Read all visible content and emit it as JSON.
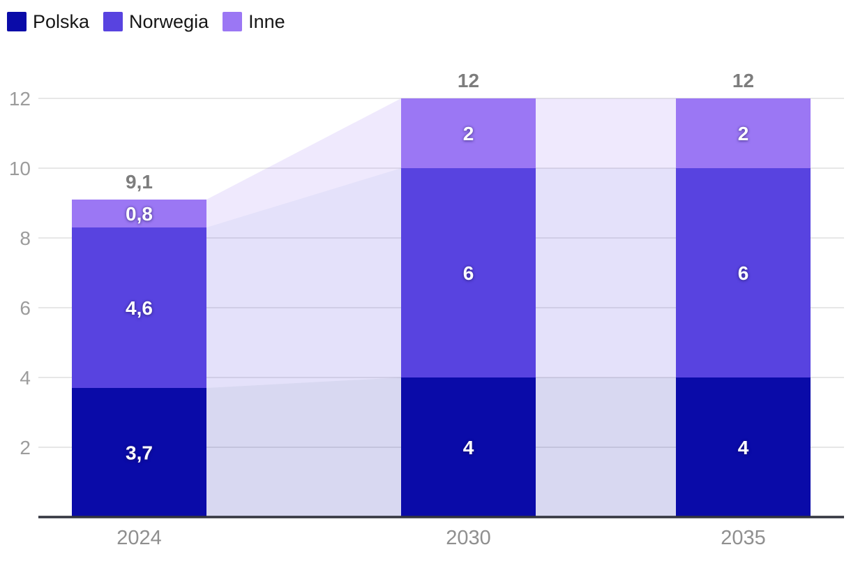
{
  "chart_data": {
    "type": "bar",
    "variant": "stacked-columns-with-connector-bands",
    "title": "",
    "categories": [
      "2024",
      "2030",
      "2035"
    ],
    "series": [
      {
        "name": "Polska",
        "color": "#0a0ba8",
        "values": [
          3.7,
          4,
          4
        ],
        "value_labels": [
          "3,7",
          "4",
          "4"
        ]
      },
      {
        "name": "Norwegia",
        "color": "#5843e0",
        "values": [
          4.6,
          6,
          6
        ],
        "value_labels": [
          "4,6",
          "6",
          "6"
        ]
      },
      {
        "name": "Inne",
        "color": "#9b77f4",
        "values": [
          0.8,
          2,
          2
        ],
        "value_labels": [
          "0,8",
          "2",
          "2"
        ]
      }
    ],
    "totals": [
      9.1,
      12,
      12
    ],
    "total_labels": [
      "9,1",
      "12",
      "12"
    ],
    "y_ticks": [
      2,
      4,
      6,
      8,
      10,
      12
    ],
    "ylim": [
      0,
      12
    ],
    "grid": true,
    "legend_position": "top-left",
    "connector_bands": true,
    "band_opacity": 0.16,
    "colors": {
      "background": "#ffffff",
      "grid": "#e7e7e7",
      "axis": "#33353f",
      "y_tick_label": "#9c9c9c",
      "x_tick_label": "#8f8f8f",
      "total_label": "#7d7d7d",
      "segment_label": "#ffffff",
      "legend_text": "#161616"
    }
  }
}
